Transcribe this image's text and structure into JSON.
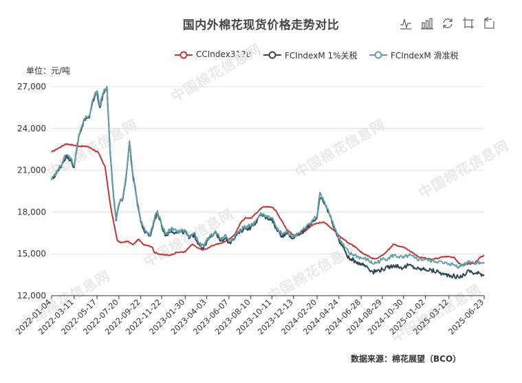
{
  "title": "国内外棉花现货价格走势对比",
  "unit_label": "单位：元/吨",
  "source": "数据来源：棉花展望（BCO）",
  "watermark": "中国棉花信息网",
  "toolbox": [
    {
      "name": "line-view-icon"
    },
    {
      "name": "bar-view-icon"
    },
    {
      "name": "restore-icon"
    },
    {
      "name": "data-zoom-icon"
    },
    {
      "name": "zoom-reset-icon"
    }
  ],
  "chart_data": {
    "type": "line",
    "title": "国内外棉花现货价格走势对比",
    "ylabel": "单位：元/吨",
    "ylim": [
      12000,
      27000
    ],
    "y_ticks": [
      12000,
      15000,
      18000,
      21000,
      24000,
      27000
    ],
    "y_tick_labels": [
      "12,000",
      "15,000",
      "18,000",
      "21,000",
      "24,000",
      "27,000"
    ],
    "x_range": [
      "2022-01-04",
      "2025-06-23"
    ],
    "x_tick_labels": [
      "2022-01-04",
      "2022-03-11",
      "2022-05-17",
      "2022-07-20",
      "2022-09-22",
      "2022-11-22",
      "2023-01-30",
      "2023-04-03",
      "2023-06-07",
      "2023-08-10",
      "2023-10-11",
      "2023-12-13",
      "2024-02-20",
      "2024-04-24",
      "2024-06-28",
      "2024-08-29",
      "2024-10-30",
      "2025-01-02",
      "2025-03-12",
      "2025-06-23"
    ],
    "grid": "horizontal",
    "legend_position": "top-right",
    "series": [
      {
        "name": "CCIndex3128",
        "color": "#c23531",
        "points": [
          [
            "2022-01-04",
            22300
          ],
          [
            "2022-02-15",
            22900
          ],
          [
            "2022-03-20",
            22750
          ],
          [
            "2022-04-20",
            22700
          ],
          [
            "2022-05-20",
            22300
          ],
          [
            "2022-06-10",
            21200
          ],
          [
            "2022-06-25",
            18500
          ],
          [
            "2022-07-05",
            17200
          ],
          [
            "2022-07-15",
            16000
          ],
          [
            "2022-07-25",
            15800
          ],
          [
            "2022-08-15",
            15900
          ],
          [
            "2022-08-30",
            15650
          ],
          [
            "2022-09-15",
            16050
          ],
          [
            "2022-09-28",
            15700
          ],
          [
            "2022-10-15",
            15600
          ],
          [
            "2022-10-25",
            15500
          ],
          [
            "2022-11-01",
            15100
          ],
          [
            "2022-11-22",
            14950
          ],
          [
            "2022-12-15",
            14900
          ],
          [
            "2023-01-05",
            15100
          ],
          [
            "2023-01-30",
            15150
          ],
          [
            "2023-02-20",
            15700
          ],
          [
            "2023-03-05",
            15450
          ],
          [
            "2023-03-20",
            15300
          ],
          [
            "2023-04-03",
            15350
          ],
          [
            "2023-04-20",
            15600
          ],
          [
            "2023-05-10",
            15750
          ],
          [
            "2023-05-25",
            15850
          ],
          [
            "2023-06-07",
            16050
          ],
          [
            "2023-06-25",
            16400
          ],
          [
            "2023-07-10",
            17200
          ],
          [
            "2023-07-25",
            17600
          ],
          [
            "2023-08-10",
            17550
          ],
          [
            "2023-08-25",
            17900
          ],
          [
            "2023-09-10",
            18300
          ],
          [
            "2023-09-25",
            18400
          ],
          [
            "2023-10-11",
            18350
          ],
          [
            "2023-10-25",
            18000
          ],
          [
            "2023-11-10",
            17300
          ],
          [
            "2023-11-25",
            16700
          ],
          [
            "2023-12-13",
            16350
          ],
          [
            "2023-12-28",
            16350
          ],
          [
            "2024-01-15",
            16600
          ],
          [
            "2024-02-01",
            17000
          ],
          [
            "2024-02-20",
            17200
          ],
          [
            "2024-03-10",
            17300
          ],
          [
            "2024-03-25",
            17000
          ],
          [
            "2024-04-10",
            16700
          ],
          [
            "2024-04-24",
            16300
          ],
          [
            "2024-05-10",
            16000
          ],
          [
            "2024-05-25",
            15750
          ],
          [
            "2024-06-10",
            15500
          ],
          [
            "2024-06-28",
            15100
          ],
          [
            "2024-07-15",
            14900
          ],
          [
            "2024-08-01",
            14650
          ],
          [
            "2024-08-15",
            14700
          ],
          [
            "2024-08-29",
            14900
          ],
          [
            "2024-09-15",
            15300
          ],
          [
            "2024-10-01",
            15700
          ],
          [
            "2024-10-15",
            15550
          ],
          [
            "2024-10-30",
            15500
          ],
          [
            "2024-11-15",
            15250
          ],
          [
            "2024-12-01",
            15000
          ],
          [
            "2024-12-15",
            14750
          ],
          [
            "2025-01-02",
            14700
          ],
          [
            "2025-01-20",
            14600
          ],
          [
            "2025-02-10",
            14700
          ],
          [
            "2025-02-25",
            14800
          ],
          [
            "2025-03-12",
            14800
          ],
          [
            "2025-03-28",
            14750
          ],
          [
            "2025-04-10",
            14300
          ],
          [
            "2025-04-25",
            14200
          ],
          [
            "2025-05-10",
            14300
          ],
          [
            "2025-05-25",
            14300
          ],
          [
            "2025-06-10",
            14700
          ],
          [
            "2025-06-23",
            14900
          ]
        ]
      },
      {
        "name": "FCIndexM 1%关税",
        "color": "#2f4554",
        "points": [
          [
            "2022-01-04",
            20300
          ],
          [
            "2022-01-25",
            21000
          ],
          [
            "2022-02-15",
            22000
          ],
          [
            "2022-03-01",
            21800
          ],
          [
            "2022-03-11",
            21200
          ],
          [
            "2022-03-25",
            23500
          ],
          [
            "2022-04-10",
            24600
          ],
          [
            "2022-04-25",
            24800
          ],
          [
            "2022-05-05",
            26000
          ],
          [
            "2022-05-17",
            26600
          ],
          [
            "2022-05-25",
            25500
          ],
          [
            "2022-06-05",
            26500
          ],
          [
            "2022-06-15",
            27000
          ],
          [
            "2022-06-25",
            22000
          ],
          [
            "2022-07-05",
            19000
          ],
          [
            "2022-07-12",
            17400
          ],
          [
            "2022-07-20",
            18500
          ],
          [
            "2022-08-01",
            19000
          ],
          [
            "2022-08-10",
            20500
          ],
          [
            "2022-08-20",
            23000
          ],
          [
            "2022-08-28",
            21000
          ],
          [
            "2022-09-10",
            19000
          ],
          [
            "2022-09-22",
            17300
          ],
          [
            "2022-10-05",
            16500
          ],
          [
            "2022-10-20",
            16300
          ],
          [
            "2022-11-01",
            17400
          ],
          [
            "2022-11-10",
            18000
          ],
          [
            "2022-11-22",
            17000
          ],
          [
            "2022-12-05",
            16300
          ],
          [
            "2022-12-20",
            16700
          ],
          [
            "2023-01-05",
            16500
          ],
          [
            "2023-01-30",
            16600
          ],
          [
            "2023-02-10",
            16100
          ],
          [
            "2023-02-25",
            16400
          ],
          [
            "2023-03-10",
            15700
          ],
          [
            "2023-03-25",
            15400
          ],
          [
            "2023-04-03",
            15900
          ],
          [
            "2023-04-15",
            16200
          ],
          [
            "2023-04-30",
            16500
          ],
          [
            "2023-05-15",
            15950
          ],
          [
            "2023-05-30",
            16200
          ],
          [
            "2023-06-07",
            15800
          ],
          [
            "2023-06-20",
            16000
          ],
          [
            "2023-07-05",
            16500
          ],
          [
            "2023-07-20",
            16800
          ],
          [
            "2023-08-10",
            16900
          ],
          [
            "2023-08-25",
            17300
          ],
          [
            "2023-09-10",
            17800
          ],
          [
            "2023-09-25",
            17600
          ],
          [
            "2023-10-11",
            17500
          ],
          [
            "2023-10-25",
            16700
          ],
          [
            "2023-11-10",
            16300
          ],
          [
            "2023-11-25",
            16500
          ],
          [
            "2023-12-13",
            16100
          ],
          [
            "2023-12-28",
            16400
          ],
          [
            "2024-01-15",
            16700
          ],
          [
            "2024-02-05",
            17300
          ],
          [
            "2024-02-20",
            17600
          ],
          [
            "2024-02-28",
            19000
          ],
          [
            "2024-03-10",
            18700
          ],
          [
            "2024-03-25",
            18000
          ],
          [
            "2024-04-10",
            16900
          ],
          [
            "2024-04-24",
            16000
          ],
          [
            "2024-05-10",
            15300
          ],
          [
            "2024-05-25",
            14600
          ],
          [
            "2024-06-10",
            14500
          ],
          [
            "2024-06-28",
            14300
          ],
          [
            "2024-07-15",
            14100
          ],
          [
            "2024-08-01",
            13700
          ],
          [
            "2024-08-15",
            13800
          ],
          [
            "2024-08-29",
            13900
          ],
          [
            "2024-09-15",
            14000
          ],
          [
            "2024-10-01",
            14200
          ],
          [
            "2024-10-15",
            14100
          ],
          [
            "2024-10-30",
            14000
          ],
          [
            "2024-11-15",
            14200
          ],
          [
            "2024-12-01",
            14000
          ],
          [
            "2024-12-15",
            13900
          ],
          [
            "2025-01-02",
            13900
          ],
          [
            "2025-01-20",
            13800
          ],
          [
            "2025-02-10",
            13700
          ],
          [
            "2025-02-25",
            13500
          ],
          [
            "2025-03-12",
            13500
          ],
          [
            "2025-03-28",
            13400
          ],
          [
            "2025-04-10",
            13300
          ],
          [
            "2025-04-25",
            13500
          ],
          [
            "2025-05-10",
            13800
          ],
          [
            "2025-05-25",
            13600
          ],
          [
            "2025-06-10",
            13600
          ],
          [
            "2025-06-23",
            13500
          ]
        ]
      },
      {
        "name": "FCIndexM 滑准税",
        "color": "#61a0a8",
        "points": [
          [
            "2022-01-04",
            20300
          ],
          [
            "2022-01-25",
            21100
          ],
          [
            "2022-02-15",
            22100
          ],
          [
            "2022-03-01",
            21900
          ],
          [
            "2022-03-11",
            21300
          ],
          [
            "2022-03-25",
            23600
          ],
          [
            "2022-04-10",
            24700
          ],
          [
            "2022-04-25",
            24900
          ],
          [
            "2022-05-05",
            26100
          ],
          [
            "2022-05-17",
            26700
          ],
          [
            "2022-05-25",
            25600
          ],
          [
            "2022-06-05",
            26600
          ],
          [
            "2022-06-15",
            27000
          ],
          [
            "2022-06-25",
            22100
          ],
          [
            "2022-07-05",
            19100
          ],
          [
            "2022-07-12",
            17500
          ],
          [
            "2022-07-20",
            18600
          ],
          [
            "2022-08-01",
            19100
          ],
          [
            "2022-08-10",
            20600
          ],
          [
            "2022-08-20",
            23100
          ],
          [
            "2022-08-28",
            21100
          ],
          [
            "2022-09-10",
            19100
          ],
          [
            "2022-09-22",
            17400
          ],
          [
            "2022-10-05",
            16600
          ],
          [
            "2022-10-20",
            16400
          ],
          [
            "2022-11-01",
            17500
          ],
          [
            "2022-11-10",
            18100
          ],
          [
            "2022-11-22",
            17100
          ],
          [
            "2022-12-05",
            16400
          ],
          [
            "2022-12-20",
            16800
          ],
          [
            "2023-01-05",
            16600
          ],
          [
            "2023-01-30",
            16700
          ],
          [
            "2023-02-10",
            16200
          ],
          [
            "2023-02-25",
            16500
          ],
          [
            "2023-03-10",
            15800
          ],
          [
            "2023-03-25",
            15500
          ],
          [
            "2023-04-03",
            16000
          ],
          [
            "2023-04-15",
            16300
          ],
          [
            "2023-04-30",
            16600
          ],
          [
            "2023-05-15",
            16050
          ],
          [
            "2023-05-30",
            16300
          ],
          [
            "2023-06-07",
            15900
          ],
          [
            "2023-06-20",
            16100
          ],
          [
            "2023-07-05",
            16600
          ],
          [
            "2023-07-20",
            16900
          ],
          [
            "2023-08-10",
            17000
          ],
          [
            "2023-08-25",
            17400
          ],
          [
            "2023-09-10",
            17900
          ],
          [
            "2023-09-25",
            17700
          ],
          [
            "2023-10-11",
            17600
          ],
          [
            "2023-10-25",
            16800
          ],
          [
            "2023-11-10",
            16400
          ],
          [
            "2023-11-25",
            16600
          ],
          [
            "2023-12-13",
            16200
          ],
          [
            "2023-12-28",
            16500
          ],
          [
            "2024-01-15",
            16800
          ],
          [
            "2024-02-05",
            17400
          ],
          [
            "2024-02-20",
            17700
          ],
          [
            "2024-02-28",
            19400
          ],
          [
            "2024-03-10",
            18800
          ],
          [
            "2024-03-25",
            18100
          ],
          [
            "2024-04-10",
            17000
          ],
          [
            "2024-04-24",
            16100
          ],
          [
            "2024-05-10",
            15500
          ],
          [
            "2024-05-25",
            15000
          ],
          [
            "2024-06-10",
            14900
          ],
          [
            "2024-06-28",
            14700
          ],
          [
            "2024-07-15",
            14600
          ],
          [
            "2024-08-01",
            14300
          ],
          [
            "2024-08-15",
            14400
          ],
          [
            "2024-08-29",
            14600
          ],
          [
            "2024-09-15",
            14700
          ],
          [
            "2024-10-01",
            14900
          ],
          [
            "2024-10-15",
            14800
          ],
          [
            "2024-10-30",
            14700
          ],
          [
            "2024-11-15",
            14900
          ],
          [
            "2024-12-01",
            14700
          ],
          [
            "2024-12-15",
            14600
          ],
          [
            "2025-01-02",
            14600
          ],
          [
            "2025-01-20",
            14500
          ],
          [
            "2025-02-10",
            14450
          ],
          [
            "2025-02-25",
            14300
          ],
          [
            "2025-03-12",
            14300
          ],
          [
            "2025-03-28",
            14200
          ],
          [
            "2025-04-10",
            14100
          ],
          [
            "2025-04-25",
            14250
          ],
          [
            "2025-05-10",
            14500
          ],
          [
            "2025-05-25",
            14350
          ],
          [
            "2025-06-10",
            14400
          ],
          [
            "2025-06-23",
            14300
          ]
        ]
      }
    ]
  }
}
